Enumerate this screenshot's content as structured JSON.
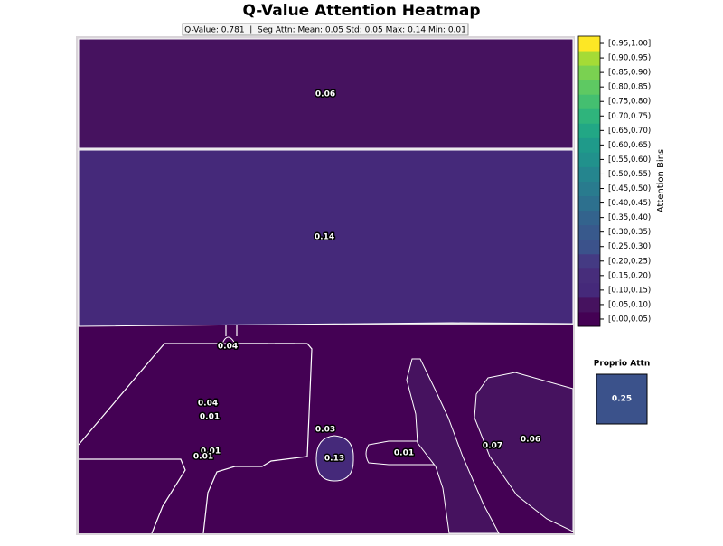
{
  "chart_data": {
    "type": "segment-heatmap",
    "title": "Q-Value Attention Heatmap",
    "subtitle": "Q-Value: 0.781  |  Seg Attn: Mean: 0.05 Std: 0.05 Max: 0.14 Min: 0.01",
    "values": [
      0.06,
      0.14,
      0.04,
      0.04,
      0.01,
      0.03,
      0.13,
      0.01,
      0.01,
      0.01,
      0.07,
      0.06
    ],
    "colorbar": {
      "label": "Attention Bins",
      "bin_width": 0.05,
      "bins": [
        "[0.00,0.05)",
        "[0.05,0.10)",
        "[0.10,0.15)",
        "[0.15,0.20)",
        "[0.20,0.25)",
        "[0.25,0.30)",
        "[0.30,0.35)",
        "[0.35,0.40)",
        "[0.40,0.45)",
        "[0.45,0.50)",
        "[0.50,0.55)",
        "[0.55,0.60)",
        "[0.60,0.65)",
        "[0.65,0.70)",
        "[0.70,0.75)",
        "[0.75,0.80)",
        "[0.80,0.85)",
        "[0.85,0.90)",
        "[0.90,0.95)",
        "[0.95,1.00]"
      ],
      "colors": [
        "#440154",
        "#46125f",
        "#45297a",
        "#472d7b",
        "#443a83",
        "#3b528b",
        "#38598c",
        "#33638d",
        "#2d708e",
        "#297b8e",
        "#25858e",
        "#21918c",
        "#1f9a8a",
        "#22a785",
        "#2fb47c",
        "#44bf70",
        "#5ec962",
        "#7ad151",
        "#a5db36",
        "#fde725"
      ]
    },
    "proprio": {
      "title": "Proprio Attn",
      "value": 0.25
    }
  }
}
